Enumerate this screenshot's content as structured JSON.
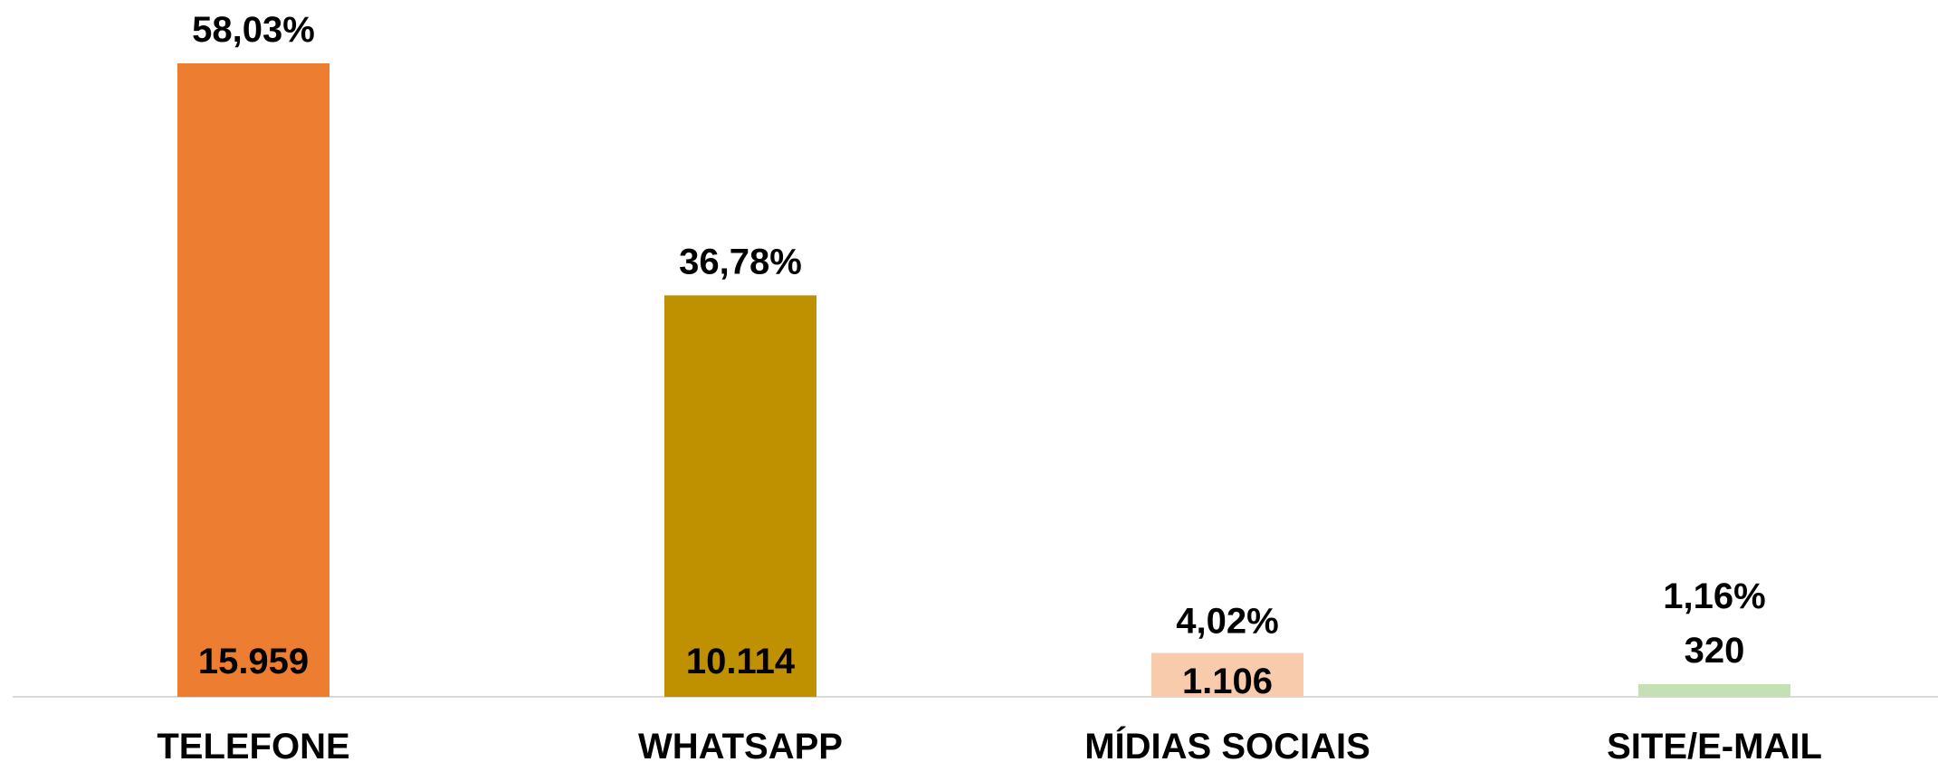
{
  "chart_data": {
    "type": "bar",
    "categories": [
      "TELEFONE",
      "WHATSAPP",
      "MÍDIAS SOCIAIS",
      "SITE/E-MAIL"
    ],
    "values": [
      15959,
      10114,
      1106,
      320
    ],
    "value_labels": [
      "15.959",
      "10.114",
      "1.106",
      "320"
    ],
    "percent_labels": [
      "58,03%",
      "36,78%",
      "4,02%",
      "1,16%"
    ],
    "colors": [
      "#ED7D31",
      "#BF9000",
      "#F8CBAD",
      "#C5E0B4"
    ],
    "title": "",
    "xlabel": "",
    "ylabel": "",
    "ylim": [
      0,
      15959
    ],
    "grid": false,
    "legend": "none"
  }
}
